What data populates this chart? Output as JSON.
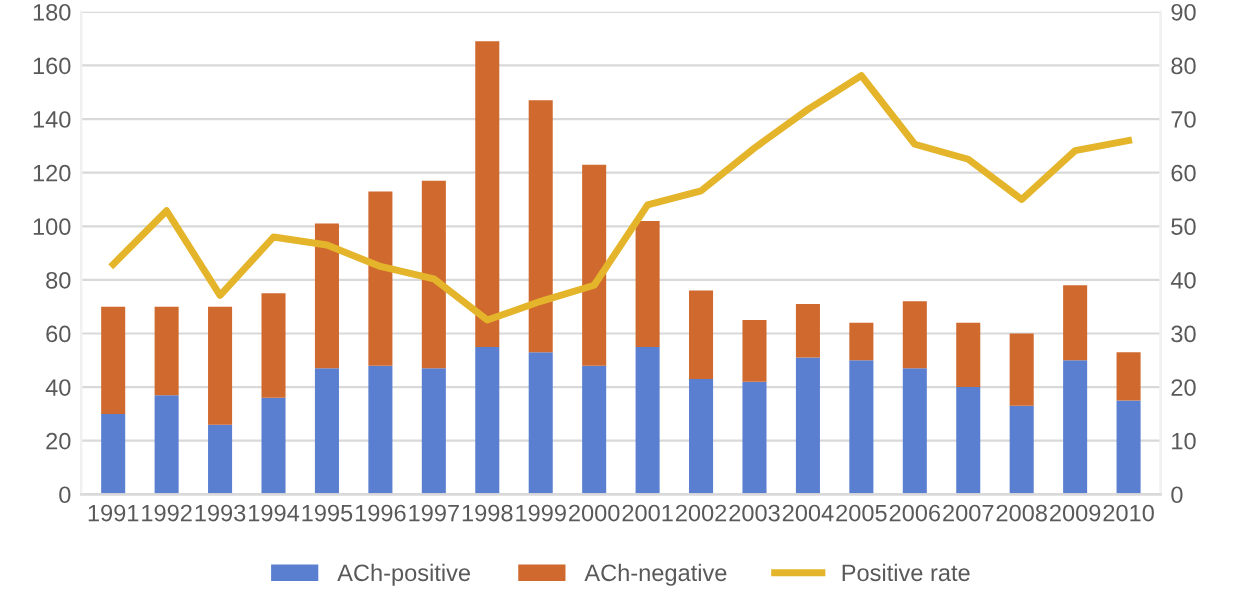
{
  "chart_data": {
    "type": "bar",
    "stacked": true,
    "categories": [
      "1991",
      "1992",
      "1993",
      "1994",
      "1995",
      "1996",
      "1997",
      "1998",
      "1999",
      "2000",
      "2001",
      "2002",
      "2003",
      "2004",
      "2005",
      "2006",
      "2007",
      "2008",
      "2009",
      "2010"
    ],
    "series": [
      {
        "name": "ACh-positive",
        "color": "#5b7fd0",
        "values": [
          30,
          37,
          26,
          36,
          47,
          48,
          47,
          55,
          53,
          48,
          55,
          43,
          42,
          51,
          50,
          47,
          40,
          33,
          50,
          35
        ]
      },
      {
        "name": "ACh-negative",
        "color": "#d0692e",
        "values": [
          40,
          33,
          44,
          39,
          54,
          65,
          70,
          114,
          94,
          75,
          47,
          33,
          23,
          20,
          14,
          25,
          24,
          27,
          28,
          18
        ]
      },
      {
        "name": "Positive rate",
        "type": "line",
        "axis": "y2",
        "color": "#e4b52a",
        "values": [
          42.9,
          52.9,
          37.1,
          48,
          46.5,
          42.5,
          40.2,
          32.5,
          36,
          39,
          54,
          56.6,
          64.6,
          71.8,
          78.1,
          65.3,
          62.5,
          55,
          64.1,
          66
        ]
      }
    ],
    "ylim": [
      0,
      180
    ],
    "yticks": [
      0,
      20,
      40,
      60,
      80,
      100,
      120,
      140,
      160,
      180
    ],
    "y2lim": [
      0,
      90
    ],
    "y2ticks": [
      0,
      10,
      20,
      30,
      40,
      50,
      60,
      70,
      80,
      90
    ],
    "grid": "y",
    "legend": "bottom"
  }
}
